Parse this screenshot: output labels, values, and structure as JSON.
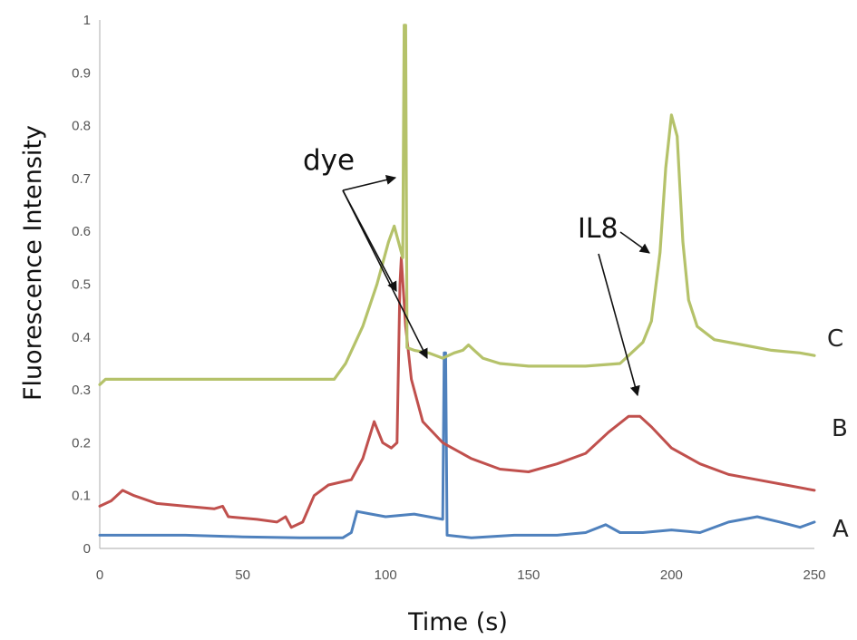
{
  "chart_data": {
    "type": "line",
    "title": "",
    "xlabel": "Time (s)",
    "ylabel": "Fluorescence Intensity",
    "xlim": [
      0,
      250
    ],
    "ylim": [
      0,
      1
    ],
    "x_ticks": [
      "0",
      "50",
      "100",
      "150",
      "200",
      "250"
    ],
    "y_ticks": [
      "0",
      "0.1",
      "0.2",
      "0.3",
      "0.4",
      "0.5",
      "0.6",
      "0.7",
      "0.8",
      "0.9",
      "1"
    ],
    "grid": false,
    "series": [
      {
        "name": "C",
        "color": "#b5c26a",
        "points": [
          [
            0,
            0.31
          ],
          [
            2,
            0.32
          ],
          [
            20,
            0.32
          ],
          [
            40,
            0.32
          ],
          [
            60,
            0.32
          ],
          [
            82,
            0.32
          ],
          [
            86,
            0.35
          ],
          [
            92,
            0.42
          ],
          [
            97,
            0.5
          ],
          [
            101,
            0.58
          ],
          [
            103,
            0.61
          ],
          [
            105,
            0.57
          ],
          [
            106,
            0.55
          ],
          [
            106.5,
            0.99
          ],
          [
            107,
            0.99
          ],
          [
            107.5,
            0.38
          ],
          [
            110,
            0.375
          ],
          [
            115,
            0.37
          ],
          [
            120,
            0.36
          ],
          [
            124,
            0.37
          ],
          [
            127,
            0.375
          ],
          [
            129,
            0.385
          ],
          [
            131,
            0.375
          ],
          [
            134,
            0.36
          ],
          [
            140,
            0.35
          ],
          [
            150,
            0.345
          ],
          [
            160,
            0.345
          ],
          [
            170,
            0.345
          ],
          [
            182,
            0.35
          ],
          [
            186,
            0.37
          ],
          [
            190,
            0.39
          ],
          [
            193,
            0.43
          ],
          [
            196,
            0.56
          ],
          [
            198,
            0.72
          ],
          [
            200,
            0.82
          ],
          [
            202,
            0.78
          ],
          [
            204,
            0.58
          ],
          [
            206,
            0.47
          ],
          [
            209,
            0.42
          ],
          [
            215,
            0.395
          ],
          [
            225,
            0.385
          ],
          [
            235,
            0.375
          ],
          [
            245,
            0.37
          ],
          [
            250,
            0.365
          ]
        ]
      },
      {
        "name": "B",
        "color": "#c0504d",
        "points": [
          [
            0,
            0.08
          ],
          [
            4,
            0.09
          ],
          [
            8,
            0.11
          ],
          [
            12,
            0.1
          ],
          [
            20,
            0.085
          ],
          [
            30,
            0.08
          ],
          [
            40,
            0.075
          ],
          [
            43,
            0.08
          ],
          [
            45,
            0.06
          ],
          [
            55,
            0.055
          ],
          [
            62,
            0.05
          ],
          [
            65,
            0.06
          ],
          [
            67,
            0.04
          ],
          [
            71,
            0.05
          ],
          [
            75,
            0.1
          ],
          [
            80,
            0.12
          ],
          [
            88,
            0.13
          ],
          [
            92,
            0.17
          ],
          [
            96,
            0.24
          ],
          [
            99,
            0.2
          ],
          [
            102,
            0.19
          ],
          [
            104,
            0.2
          ],
          [
            105,
            0.5
          ],
          [
            105.5,
            0.55
          ],
          [
            107,
            0.42
          ],
          [
            109,
            0.32
          ],
          [
            113,
            0.24
          ],
          [
            120,
            0.2
          ],
          [
            130,
            0.17
          ],
          [
            140,
            0.15
          ],
          [
            150,
            0.145
          ],
          [
            160,
            0.16
          ],
          [
            170,
            0.18
          ],
          [
            178,
            0.22
          ],
          [
            185,
            0.25
          ],
          [
            189,
            0.25
          ],
          [
            193,
            0.23
          ],
          [
            200,
            0.19
          ],
          [
            210,
            0.16
          ],
          [
            220,
            0.14
          ],
          [
            230,
            0.13
          ],
          [
            240,
            0.12
          ],
          [
            250,
            0.11
          ]
        ]
      },
      {
        "name": "A",
        "color": "#4f81bd",
        "points": [
          [
            0,
            0.025
          ],
          [
            10,
            0.025
          ],
          [
            30,
            0.025
          ],
          [
            50,
            0.022
          ],
          [
            70,
            0.02
          ],
          [
            85,
            0.02
          ],
          [
            88,
            0.03
          ],
          [
            90,
            0.07
          ],
          [
            95,
            0.065
          ],
          [
            100,
            0.06
          ],
          [
            110,
            0.065
          ],
          [
            115,
            0.06
          ],
          [
            120,
            0.055
          ],
          [
            120.5,
            0.37
          ],
          [
            121,
            0.37
          ],
          [
            121.5,
            0.025
          ],
          [
            130,
            0.02
          ],
          [
            145,
            0.025
          ],
          [
            160,
            0.025
          ],
          [
            170,
            0.03
          ],
          [
            177,
            0.045
          ],
          [
            182,
            0.03
          ],
          [
            190,
            0.03
          ],
          [
            200,
            0.035
          ],
          [
            210,
            0.03
          ],
          [
            220,
            0.05
          ],
          [
            230,
            0.06
          ],
          [
            238,
            0.05
          ],
          [
            245,
            0.04
          ],
          [
            250,
            0.05
          ]
        ]
      }
    ],
    "annotations": {
      "dye": "dye",
      "il8": "IL8",
      "series_labels": [
        "C",
        "B",
        "A"
      ]
    }
  }
}
